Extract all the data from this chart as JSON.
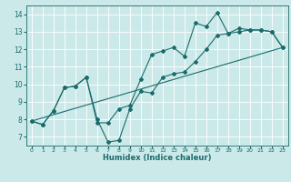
{
  "xlabel": "Humidex (Indice chaleur)",
  "ylabel": "",
  "bg_color": "#cce9e9",
  "grid_color": "#ffffff",
  "line_color": "#1a6b6b",
  "xlim": [
    -0.5,
    23.5
  ],
  "ylim": [
    6.5,
    14.5
  ],
  "xticks": [
    0,
    1,
    2,
    3,
    4,
    5,
    6,
    7,
    8,
    9,
    10,
    11,
    12,
    13,
    14,
    15,
    16,
    17,
    18,
    19,
    20,
    21,
    22,
    23
  ],
  "yticks": [
    7,
    8,
    9,
    10,
    11,
    12,
    13,
    14
  ],
  "line1_x": [
    0,
    1,
    2,
    3,
    4,
    5,
    6,
    7,
    8,
    9,
    10,
    11,
    12,
    13,
    14,
    15,
    16,
    17,
    18,
    19,
    20,
    21,
    22,
    23
  ],
  "line1_y": [
    7.9,
    7.7,
    8.5,
    9.8,
    9.9,
    10.4,
    7.8,
    7.8,
    8.6,
    8.8,
    10.3,
    11.7,
    11.9,
    12.1,
    11.6,
    13.5,
    13.3,
    14.1,
    12.9,
    13.2,
    13.1,
    13.1,
    13.0,
    12.1
  ],
  "line2_x": [
    0,
    1,
    2,
    3,
    4,
    5,
    6,
    7,
    8,
    9,
    10,
    11,
    12,
    13,
    14,
    15,
    16,
    17,
    18,
    19,
    20,
    21,
    22,
    23
  ],
  "line2_y": [
    7.9,
    7.7,
    8.5,
    9.8,
    9.9,
    10.4,
    8.0,
    6.7,
    6.8,
    8.6,
    9.6,
    9.5,
    10.4,
    10.6,
    10.7,
    11.3,
    12.0,
    12.8,
    12.9,
    13.0,
    13.1,
    13.1,
    13.0,
    12.1
  ],
  "line3_x": [
    0,
    23
  ],
  "line3_y": [
    7.9,
    12.1
  ]
}
